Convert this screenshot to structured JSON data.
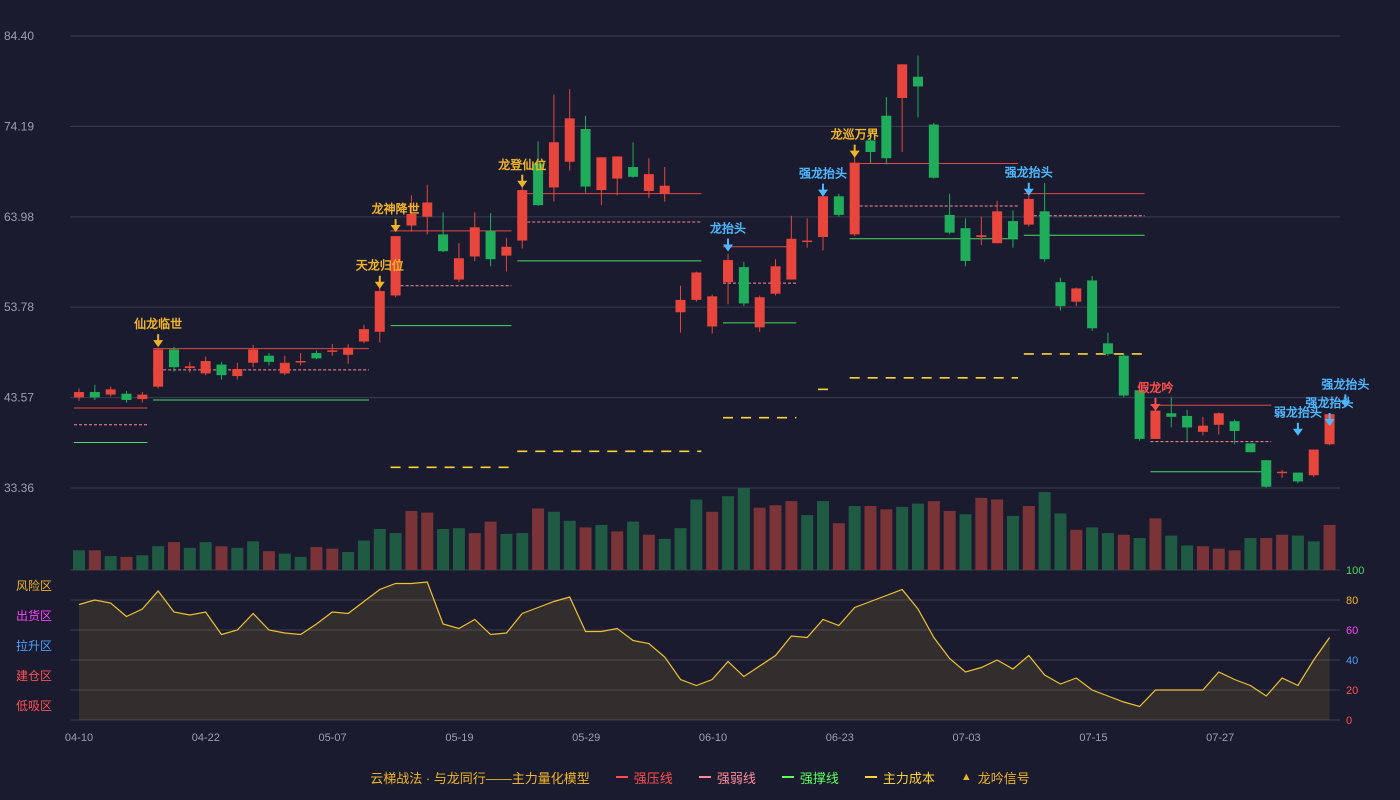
{
  "chart_data": {
    "type": "candlestick",
    "x_tick_labels": [
      "04-10",
      "04-22",
      "05-07",
      "05-19",
      "05-29",
      "06-10",
      "06-23",
      "07-03",
      "07-15",
      "07-27"
    ],
    "y_tick_labels": [
      "84.40",
      "74.19",
      "63.98",
      "53.78",
      "43.57",
      "33.36"
    ],
    "ylim": [
      33.36,
      84.4
    ],
    "candles": [
      {
        "o": 43.6,
        "c": 44.2,
        "h": 44.6,
        "l": 43.2
      },
      {
        "o": 44.2,
        "c": 43.6,
        "h": 45.0,
        "l": 43.3
      },
      {
        "o": 43.9,
        "c": 44.5,
        "h": 44.8,
        "l": 43.7
      },
      {
        "o": 44.0,
        "c": 43.3,
        "h": 44.3,
        "l": 43.0
      },
      {
        "o": 43.4,
        "c": 43.9,
        "h": 44.2,
        "l": 43.0
      },
      {
        "o": 44.8,
        "c": 49.0,
        "h": 49.2,
        "l": 44.6
      },
      {
        "o": 49.0,
        "c": 47.0,
        "h": 49.3,
        "l": 46.5
      },
      {
        "o": 46.9,
        "c": 47.1,
        "h": 47.6,
        "l": 46.4
      },
      {
        "o": 46.3,
        "c": 47.7,
        "h": 48.2,
        "l": 46.1
      },
      {
        "o": 47.3,
        "c": 46.1,
        "h": 47.6,
        "l": 45.6
      },
      {
        "o": 46.0,
        "c": 46.8,
        "h": 47.5,
        "l": 45.6
      },
      {
        "o": 47.5,
        "c": 49.0,
        "h": 49.5,
        "l": 47.0
      },
      {
        "o": 48.3,
        "c": 47.6,
        "h": 48.6,
        "l": 47.2
      },
      {
        "o": 46.3,
        "c": 47.5,
        "h": 48.3,
        "l": 46.1
      },
      {
        "o": 47.7,
        "c": 47.7,
        "h": 48.6,
        "l": 47.2
      },
      {
        "o": 48.6,
        "c": 48.0,
        "h": 48.9,
        "l": 47.9
      },
      {
        "o": 48.8,
        "c": 48.9,
        "h": 49.6,
        "l": 48.3
      },
      {
        "o": 48.4,
        "c": 49.2,
        "h": 49.6,
        "l": 47.4
      },
      {
        "o": 49.9,
        "c": 51.3,
        "h": 51.8,
        "l": 49.7
      },
      {
        "o": 51.0,
        "c": 55.6,
        "h": 56.2,
        "l": 49.8
      },
      {
        "o": 55.1,
        "c": 61.8,
        "h": 61.8,
        "l": 54.9
      },
      {
        "o": 63.0,
        "c": 64.3,
        "h": 66.4,
        "l": 62.3
      },
      {
        "o": 64.0,
        "c": 65.6,
        "h": 67.6,
        "l": 62.0
      },
      {
        "o": 62.0,
        "c": 60.1,
        "h": 64.5,
        "l": 60.0
      },
      {
        "o": 56.9,
        "c": 59.3,
        "h": 61.0,
        "l": 56.6
      },
      {
        "o": 59.5,
        "c": 62.8,
        "h": 64.5,
        "l": 59.0
      },
      {
        "o": 62.4,
        "c": 59.2,
        "h": 64.4,
        "l": 58.4
      },
      {
        "o": 59.6,
        "c": 60.6,
        "h": 61.6,
        "l": 57.8
      },
      {
        "o": 61.3,
        "c": 67.0,
        "h": 67.4,
        "l": 60.4
      },
      {
        "o": 70.0,
        "c": 65.3,
        "h": 72.5,
        "l": 65.2
      },
      {
        "o": 67.3,
        "c": 72.4,
        "h": 77.8,
        "l": 65.7
      },
      {
        "o": 70.2,
        "c": 75.1,
        "h": 78.4,
        "l": 69.2
      },
      {
        "o": 73.9,
        "c": 67.4,
        "h": 75.4,
        "l": 66.7
      },
      {
        "o": 67.0,
        "c": 70.7,
        "h": 70.7,
        "l": 65.3
      },
      {
        "o": 68.3,
        "c": 70.8,
        "h": 70.8,
        "l": 66.4
      },
      {
        "o": 69.6,
        "c": 68.5,
        "h": 72.4,
        "l": 68.4
      },
      {
        "o": 66.9,
        "c": 68.8,
        "h": 70.6,
        "l": 66.1
      },
      {
        "o": 66.6,
        "c": 67.5,
        "h": 69.6,
        "l": 65.7
      },
      {
        "o": 53.2,
        "c": 54.6,
        "h": 56.2,
        "l": 50.9
      },
      {
        "o": 54.6,
        "c": 57.7,
        "h": 57.8,
        "l": 54.4
      },
      {
        "o": 51.6,
        "c": 55.0,
        "h": 55.2,
        "l": 50.8
      },
      {
        "o": 56.6,
        "c": 59.1,
        "h": 59.8,
        "l": 54.1
      },
      {
        "o": 58.3,
        "c": 54.2,
        "h": 58.9,
        "l": 53.9
      },
      {
        "o": 51.5,
        "c": 54.9,
        "h": 55.1,
        "l": 51.0
      },
      {
        "o": 55.3,
        "c": 58.4,
        "h": 59.2,
        "l": 55.1
      },
      {
        "o": 56.9,
        "c": 61.5,
        "h": 64.1,
        "l": 56.9
      },
      {
        "o": 61.3,
        "c": 61.3,
        "h": 63.8,
        "l": 60.5
      },
      {
        "o": 61.7,
        "c": 66.3,
        "h": 66.4,
        "l": 60.2
      },
      {
        "o": 66.3,
        "c": 64.2,
        "h": 66.6,
        "l": 64.0
      },
      {
        "o": 62.0,
        "c": 70.1,
        "h": 70.8,
        "l": 61.8
      },
      {
        "o": 72.6,
        "c": 71.3,
        "h": 73.6,
        "l": 70.0
      },
      {
        "o": 75.4,
        "c": 70.6,
        "h": 77.5,
        "l": 69.9
      },
      {
        "o": 77.4,
        "c": 81.2,
        "h": 81.2,
        "l": 71.3
      },
      {
        "o": 79.8,
        "c": 78.7,
        "h": 82.2,
        "l": 75.2
      },
      {
        "o": 74.4,
        "c": 68.4,
        "h": 74.6,
        "l": 68.3
      },
      {
        "o": 64.2,
        "c": 62.2,
        "h": 66.6,
        "l": 62.0
      },
      {
        "o": 62.7,
        "c": 59.0,
        "h": 63.8,
        "l": 58.4
      },
      {
        "o": 61.7,
        "c": 61.9,
        "h": 64.0,
        "l": 60.8
      },
      {
        "o": 61.0,
        "c": 64.6,
        "h": 65.8,
        "l": 61.0
      },
      {
        "o": 63.5,
        "c": 61.5,
        "h": 64.7,
        "l": 60.5
      },
      {
        "o": 63.1,
        "c": 66.0,
        "h": 66.6,
        "l": 62.9
      },
      {
        "o": 64.6,
        "c": 59.2,
        "h": 67.8,
        "l": 58.9
      },
      {
        "o": 56.6,
        "c": 53.9,
        "h": 57.1,
        "l": 53.4
      },
      {
        "o": 54.4,
        "c": 55.9,
        "h": 56.0,
        "l": 53.9
      },
      {
        "o": 56.8,
        "c": 51.4,
        "h": 57.3,
        "l": 51.1
      },
      {
        "o": 49.7,
        "c": 48.5,
        "h": 50.9,
        "l": 48.3
      },
      {
        "o": 48.3,
        "c": 43.8,
        "h": 48.6,
        "l": 43.6
      },
      {
        "o": 44.4,
        "c": 38.9,
        "h": 44.5,
        "l": 38.7
      },
      {
        "o": 38.9,
        "c": 42.1,
        "h": 42.1,
        "l": 38.9
      },
      {
        "o": 41.8,
        "c": 41.4,
        "h": 43.6,
        "l": 40.2
      },
      {
        "o": 41.5,
        "c": 40.2,
        "h": 42.2,
        "l": 38.7
      },
      {
        "o": 39.7,
        "c": 40.4,
        "h": 41.4,
        "l": 39.3
      },
      {
        "o": 40.5,
        "c": 41.8,
        "h": 41.9,
        "l": 39.4
      },
      {
        "o": 40.9,
        "c": 39.8,
        "h": 41.1,
        "l": 38.3
      },
      {
        "o": 38.4,
        "c": 37.4,
        "h": 38.4,
        "l": 37.4
      },
      {
        "o": 36.5,
        "c": 33.5,
        "h": 36.5,
        "l": 33.4
      },
      {
        "o": 35.2,
        "c": 35.2,
        "h": 35.4,
        "l": 34.5
      },
      {
        "o": 35.1,
        "c": 34.1,
        "h": 35.1,
        "l": 33.9
      },
      {
        "o": 34.8,
        "c": 37.7,
        "h": 37.7,
        "l": 34.6
      },
      {
        "o": 38.3,
        "c": 41.7,
        "h": 41.7,
        "l": 38.2
      }
    ],
    "volume_relative": [
      0.24,
      0.24,
      0.17,
      0.16,
      0.18,
      0.29,
      0.34,
      0.27,
      0.34,
      0.29,
      0.27,
      0.35,
      0.23,
      0.2,
      0.16,
      0.28,
      0.26,
      0.22,
      0.36,
      0.5,
      0.45,
      0.72,
      0.7,
      0.5,
      0.51,
      0.45,
      0.59,
      0.44,
      0.45,
      0.75,
      0.71,
      0.6,
      0.52,
      0.55,
      0.47,
      0.59,
      0.43,
      0.38,
      0.51,
      0.86,
      0.71,
      0.9,
      1.0,
      0.76,
      0.79,
      0.84,
      0.67,
      0.84,
      0.57,
      0.78,
      0.78,
      0.74,
      0.77,
      0.81,
      0.84,
      0.72,
      0.68,
      0.88,
      0.86,
      0.66,
      0.78,
      0.95,
      0.69,
      0.49,
      0.52,
      0.45,
      0.43,
      0.39,
      0.63,
      0.42,
      0.3,
      0.29,
      0.26,
      0.24,
      0.39,
      0.39,
      0.43,
      0.42,
      0.35,
      0.55
    ],
    "volume_up": [
      false,
      true,
      false,
      true,
      false,
      false,
      true,
      false,
      false,
      true,
      false,
      false,
      true,
      false,
      false,
      true,
      true,
      false,
      false,
      false,
      false,
      true,
      true,
      false,
      false,
      true,
      true,
      false,
      false,
      true,
      false,
      false,
      true,
      false,
      true,
      false,
      true,
      false,
      false,
      false,
      true,
      false,
      false,
      true,
      true,
      true,
      false,
      false,
      true,
      false,
      true,
      true,
      false,
      false,
      true,
      true,
      false,
      true,
      true,
      false,
      true,
      false,
      false,
      true,
      false,
      false,
      true,
      false,
      true,
      false,
      false,
      true,
      true,
      true,
      false,
      true,
      true,
      false,
      false,
      true
    ],
    "signals": [
      {
        "label": "仙龙临世",
        "i": 5,
        "price": 49.6,
        "color": "#f0b428"
      },
      {
        "label": "天龙归位",
        "i": 19,
        "price": 56.2,
        "color": "#f0b428"
      },
      {
        "label": "龙神降世",
        "i": 20,
        "price": 62.6,
        "color": "#f0b428"
      },
      {
        "label": "龙登仙位",
        "i": 28,
        "price": 67.6,
        "color": "#f0b428"
      },
      {
        "label": "龙抬头",
        "i": 41,
        "price": 60.4,
        "color": "#4db8ff"
      },
      {
        "label": "强龙抬头",
        "i": 47,
        "price": 66.6,
        "color": "#4db8ff"
      },
      {
        "label": "龙巡万界",
        "i": 49,
        "price": 71.0,
        "color": "#f0b428"
      },
      {
        "label": "强龙抬头",
        "i": 60,
        "price": 66.7,
        "color": "#4db8ff"
      },
      {
        "label": "假龙吟",
        "i": 68,
        "price": 42.4,
        "color": "#ff4d4d"
      },
      {
        "label": "弱龙抬头",
        "i": 77,
        "price": 39.6,
        "color": "#4db8ff"
      },
      {
        "label": "强龙抬头",
        "i": 79,
        "price": 40.7,
        "color": "#4db8ff"
      },
      {
        "label": "强龙抬头",
        "i": 80,
        "price": 42.8,
        "color": "#4db8ff"
      }
    ],
    "resistance_lines": [
      {
        "i0": 0,
        "i1": 4,
        "v": 42.4
      },
      {
        "i0": 5,
        "i1": 18,
        "v": 49.1
      },
      {
        "i0": 20,
        "i1": 27,
        "v": 62.4
      },
      {
        "i0": 28,
        "i1": 39,
        "v": 66.6
      },
      {
        "i0": 41,
        "i1": 45,
        "v": 60.6
      },
      {
        "i0": 49,
        "i1": 59,
        "v": 70.0
      },
      {
        "i0": 60,
        "i1": 67,
        "v": 66.6
      },
      {
        "i0": 68,
        "i1": 75,
        "v": 42.7
      }
    ],
    "weak_lines": [
      {
        "i0": 0,
        "i1": 4,
        "v": 40.5
      },
      {
        "i0": 5,
        "i1": 18,
        "v": 46.7
      },
      {
        "i0": 20,
        "i1": 27,
        "v": 56.2
      },
      {
        "i0": 28,
        "i1": 39,
        "v": 63.4
      },
      {
        "i0": 41,
        "i1": 45,
        "v": 56.5
      },
      {
        "i0": 49,
        "i1": 59,
        "v": 65.2
      },
      {
        "i0": 60,
        "i1": 67,
        "v": 64.1
      },
      {
        "i0": 68,
        "i1": 75,
        "v": 38.6
      }
    ],
    "support_lines": [
      {
        "i0": 0,
        "i1": 4,
        "v": 38.5
      },
      {
        "i0": 5,
        "i1": 18,
        "v": 43.3
      },
      {
        "i0": 20,
        "i1": 27,
        "v": 51.7
      },
      {
        "i0": 28,
        "i1": 39,
        "v": 59.0
      },
      {
        "i0": 41,
        "i1": 45,
        "v": 52.0
      },
      {
        "i0": 49,
        "i1": 59,
        "v": 61.5
      },
      {
        "i0": 60,
        "i1": 67,
        "v": 61.9
      },
      {
        "i0": 68,
        "i1": 75,
        "v": 35.2
      }
    ],
    "cost_lines": [
      {
        "i0": 20,
        "i1": 27,
        "v": 35.7
      },
      {
        "i0": 28,
        "i1": 39,
        "v": 37.5
      },
      {
        "i0": 41,
        "i1": 45,
        "v": 41.3
      },
      {
        "i0": 47,
        "i1": 47,
        "v": 44.5
      },
      {
        "i0": 49,
        "i1": 59,
        "v": 45.8
      },
      {
        "i0": 60,
        "i1": 67,
        "v": 48.5
      }
    ],
    "oscillator": {
      "zones": [
        "风险区",
        "出货区",
        "拉升区",
        "建仓区",
        "低吸区"
      ],
      "zone_colors": [
        "#f0b428",
        "#ff40ff",
        "#4d9fff",
        "#ff5050",
        "#ff5050"
      ],
      "y_ticks": [
        "100",
        "80",
        "60",
        "40",
        "20",
        "0"
      ],
      "ylim": [
        0,
        100
      ],
      "values": [
        77,
        80,
        78,
        69,
        74,
        86,
        72,
        70,
        72,
        57,
        60,
        71,
        60,
        58,
        57,
        64,
        72,
        71,
        79,
        87,
        91,
        91,
        92,
        64,
        61,
        67,
        57,
        58,
        71,
        75,
        79,
        82,
        59,
        59,
        61,
        53,
        51,
        42,
        27,
        23,
        27,
        39,
        29,
        36,
        43,
        56,
        55,
        67,
        63,
        75,
        79,
        83,
        87,
        74,
        55,
        41,
        32,
        35,
        40,
        34,
        43,
        30,
        24,
        28,
        20,
        16,
        12,
        9,
        20,
        20,
        20,
        20,
        32,
        27,
        23,
        16,
        28,
        23,
        40,
        55
      ]
    },
    "legend": [
      {
        "label": "云梯战法 · 与龙同行——主力量化模型",
        "color": "#f0b428",
        "kind": "none"
      },
      {
        "label": "强压线",
        "color": "#ff4d4d",
        "kind": "solid"
      },
      {
        "label": "强弱线",
        "color": "#ff8a9a",
        "kind": "dash"
      },
      {
        "label": "强撑线",
        "color": "#5cff5c",
        "kind": "solid"
      },
      {
        "label": "主力成本",
        "color": "#ffd23a",
        "kind": "dash"
      },
      {
        "label": "龙吟信号",
        "color": "#f0b428",
        "kind": "triangle"
      }
    ],
    "colors": {
      "up": "#e8453c",
      "down": "#1fad5c",
      "grid": "#3a3d52",
      "osc": "#f0c030",
      "bg": "#1a1b2e"
    }
  }
}
